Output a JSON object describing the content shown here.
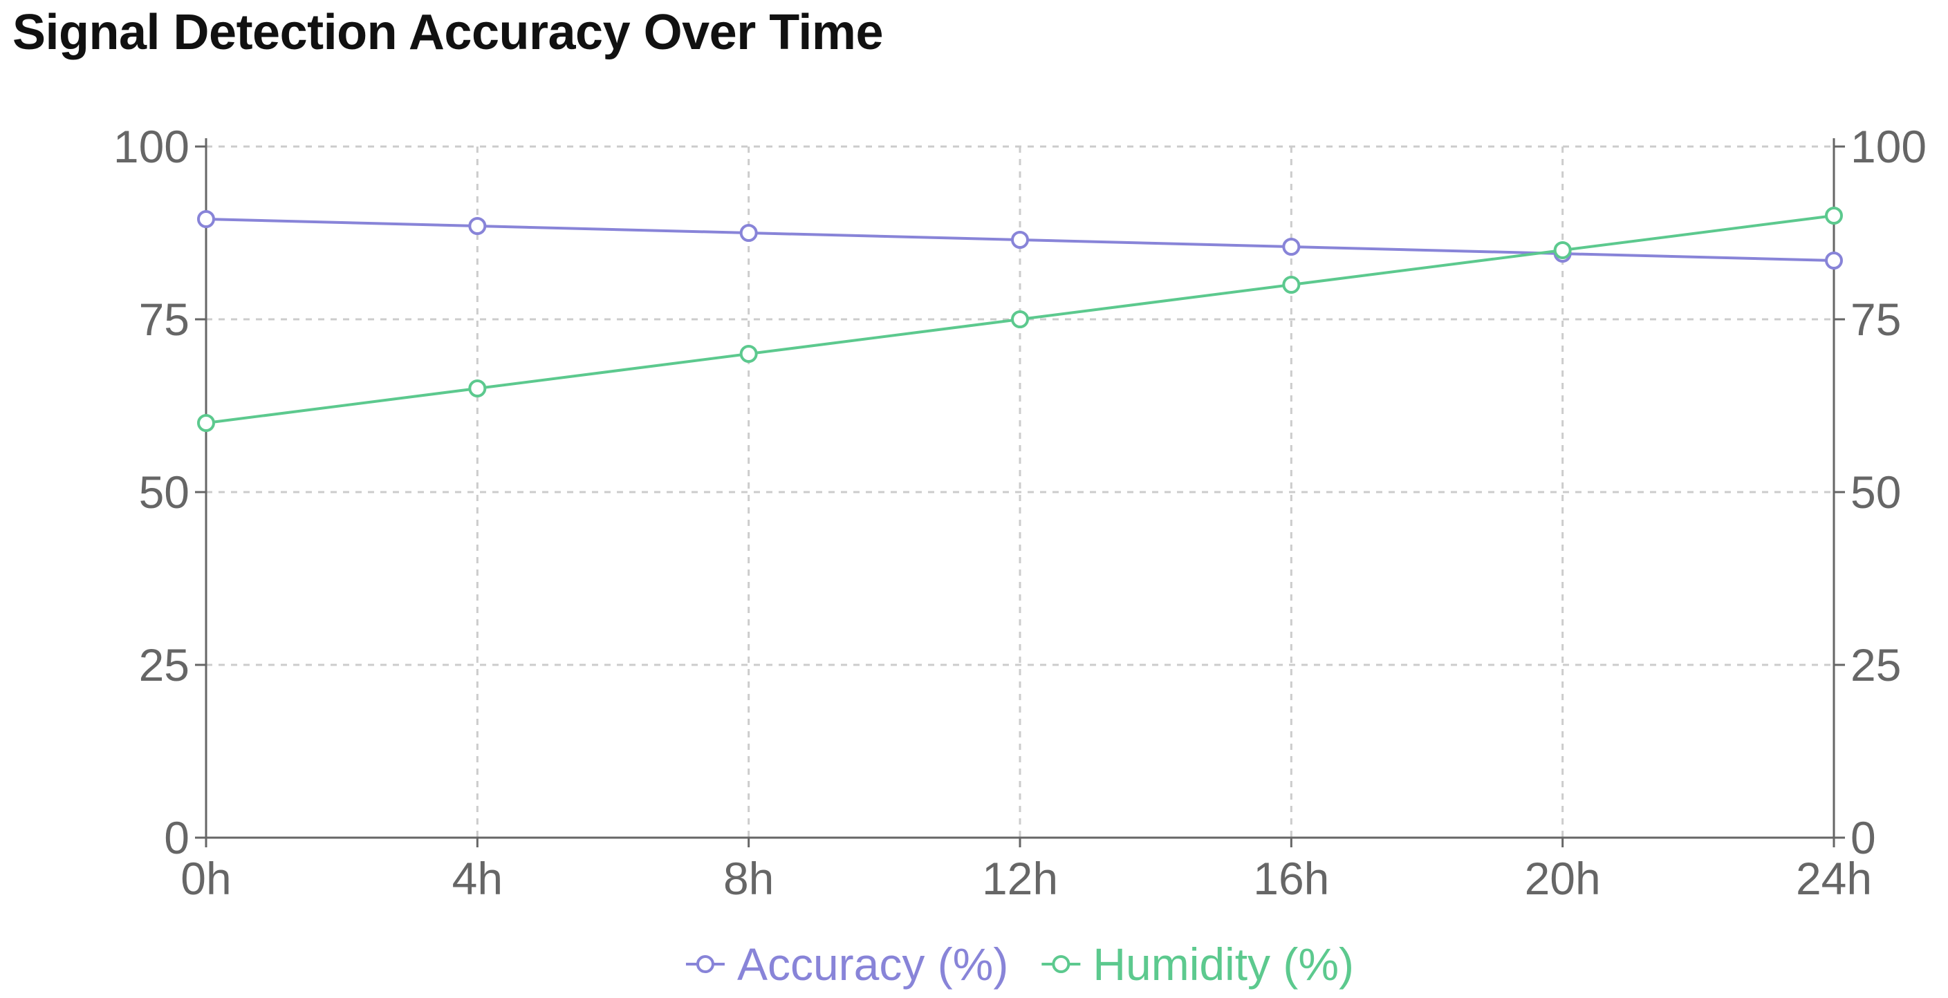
{
  "chart_data": {
    "type": "line",
    "title": "Signal Detection Accuracy Over Time",
    "categories": [
      "0h",
      "4h",
      "8h",
      "12h",
      "16h",
      "20h",
      "24h"
    ],
    "series": [
      {
        "name": "Accuracy (%)",
        "values": [
          89.5,
          88.5,
          87.5,
          86.5,
          85.5,
          84.5,
          83.5
        ],
        "color": "#8884d8",
        "axis": "left"
      },
      {
        "name": "Humidity (%)",
        "values": [
          60,
          65,
          70,
          75,
          80,
          85,
          90
        ],
        "color": "#5cc98e",
        "axis": "right"
      }
    ],
    "y_left": {
      "ticks": [
        0,
        25,
        50,
        75,
        100
      ],
      "range": [
        0,
        100
      ]
    },
    "y_right": {
      "ticks": [
        0,
        25,
        50,
        75,
        100
      ],
      "range": [
        0,
        100
      ]
    },
    "grid": true,
    "grid_style": "dashed",
    "legend_position": "bottom"
  }
}
